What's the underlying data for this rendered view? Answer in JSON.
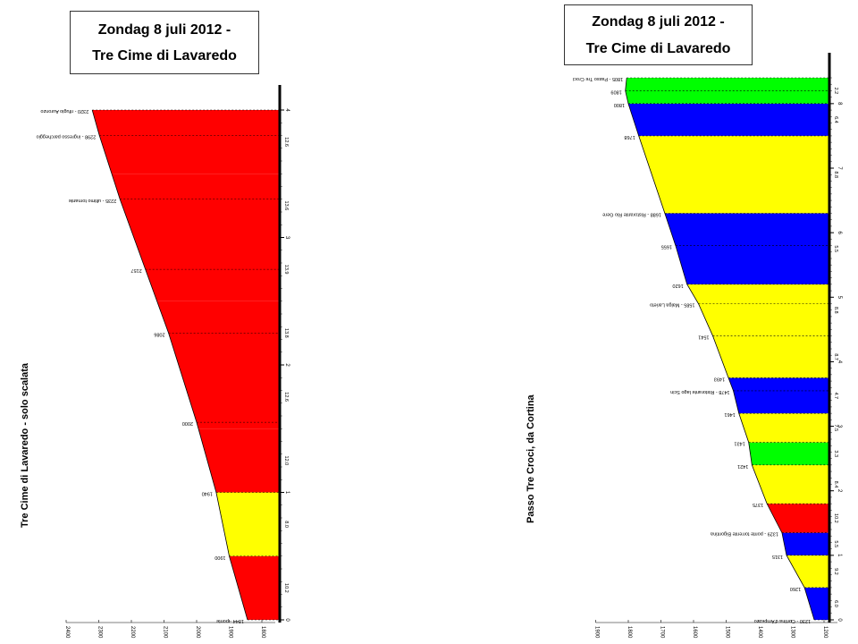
{
  "colors": {
    "red": "#ff0000",
    "yellow": "#ffff00",
    "blue": "#0000ff",
    "green": "#00ff00",
    "axis": "#000000"
  },
  "left_chart": {
    "title_line1": "Zondag 8 juli 2012 -",
    "title_line2": "Tre Cime di Lavaredo",
    "ylabel": "Tre Cime di Lavaredo - solo scalata"
  },
  "right_chart": {
    "title_line1": "Zondag 8 juli 2012 -",
    "title_line2": "Tre Cime di Lavaredo",
    "ylabel": "Passo Tre Croci, da Cortina"
  },
  "chart_data": [
    {
      "type": "area",
      "orientation": "rotated-90",
      "title": "Zondag 8 juli 2012 - Tre Cime di Lavaredo",
      "ylabel": "Tre Cime di Lavaredo - solo scalata",
      "xlim": [
        0,
        4
      ],
      "ylim": [
        1800,
        2400
      ],
      "distance_ticks": [
        "0",
        "1",
        "2",
        "3",
        "4"
      ],
      "elevation_ticks": [
        "2400",
        "2300",
        "2200",
        "2100",
        "2000",
        "1900",
        "1800"
      ],
      "segments": [
        {
          "from": 0,
          "to": 0.5,
          "color": "red",
          "gradient": "10.2"
        },
        {
          "from": 0.5,
          "to": 1,
          "color": "yellow",
          "gradient": "8.0"
        },
        {
          "from": 1,
          "to": 1.5,
          "color": "red",
          "gradient": "12.0"
        },
        {
          "from": 1.5,
          "to": 2,
          "color": "red",
          "gradient": "12.6"
        },
        {
          "from": 2,
          "to": 2.5,
          "color": "red",
          "gradient": "13.8"
        },
        {
          "from": 2.5,
          "to": 3,
          "color": "red",
          "gradient": "13.9"
        },
        {
          "from": 3,
          "to": 3.5,
          "color": "red",
          "gradient": "13.6"
        },
        {
          "from": 3.5,
          "to": 4,
          "color": "red",
          "gradient": "12.6"
        }
      ],
      "points": [
        {
          "x": 0,
          "y": 1844,
          "label": "1844 - ponte"
        },
        {
          "x": 0.5,
          "y": 1900,
          "label": "1900"
        },
        {
          "x": 1,
          "y": 1940,
          "label": "1940"
        },
        {
          "x": 1.55,
          "y": 2000,
          "label": "2000"
        },
        {
          "x": 2.25,
          "y": 2086,
          "label": "2086"
        },
        {
          "x": 2.75,
          "y": 2157,
          "label": "2157"
        },
        {
          "x": 3.3,
          "y": 2235,
          "label": "2235 - ultimo tornante"
        },
        {
          "x": 3.8,
          "y": 2298,
          "label": "2298 - ingresso parcheggio"
        },
        {
          "x": 4,
          "y": 2320,
          "label": "2320 - rifugio Auronzo"
        }
      ]
    },
    {
      "type": "area",
      "orientation": "rotated-90",
      "title": "Zondag 8 juli 2012 - Tre Cime di Lavaredo",
      "ylabel": "Passo Tre Croci, da Cortina",
      "xlim": [
        0,
        8.4
      ],
      "ylim": [
        1200,
        1900
      ],
      "distance_ticks": [
        "0",
        "1",
        "2",
        "3",
        "4",
        "5",
        "6",
        "7",
        "8"
      ],
      "elevation_ticks": [
        "1900",
        "1800",
        "1700",
        "1600",
        "1500",
        "1400",
        "1300",
        "1200"
      ],
      "segments": [
        {
          "from": 0,
          "to": 0.5,
          "color": "blue",
          "gradient": "6.0"
        },
        {
          "from": 0.5,
          "to": 1,
          "color": "yellow",
          "gradient": "9.2"
        },
        {
          "from": 1,
          "to": 1.35,
          "color": "blue",
          "gradient": "5.5"
        },
        {
          "from": 1.35,
          "to": 1.8,
          "color": "red",
          "gradient": "10.2"
        },
        {
          "from": 1.8,
          "to": 2.4,
          "color": "yellow",
          "gradient": "8.4"
        },
        {
          "from": 2.4,
          "to": 2.75,
          "color": "green",
          "gradient": "3.3"
        },
        {
          "from": 2.75,
          "to": 3.2,
          "color": "yellow",
          "gradient": "7.5"
        },
        {
          "from": 3.2,
          "to": 3.75,
          "color": "blue",
          "gradient": "4.7"
        },
        {
          "from": 3.75,
          "to": 4.4,
          "color": "yellow",
          "gradient": "8.7"
        },
        {
          "from": 4.4,
          "to": 5.2,
          "color": "yellow",
          "gradient": "8.8"
        },
        {
          "from": 5.2,
          "to": 6.3,
          "color": "blue",
          "gradient": "5.5"
        },
        {
          "from": 6.3,
          "to": 7.5,
          "color": "yellow",
          "gradient": "8.8"
        },
        {
          "from": 7.5,
          "to": 8.0,
          "color": "blue",
          "gradient": "6.4"
        },
        {
          "from": 8.0,
          "to": 8.4,
          "color": "green",
          "gradient": "2.2"
        }
      ],
      "points": [
        {
          "x": 0,
          "y": 1230,
          "label": "1230 - Cortina d'Ampezzo"
        },
        {
          "x": 0.5,
          "y": 1260,
          "label": "1260"
        },
        {
          "x": 1,
          "y": 1315,
          "label": "1315"
        },
        {
          "x": 1.35,
          "y": 1329,
          "label": "1329 - ponte torrente Bigontina"
        },
        {
          "x": 1.8,
          "y": 1375,
          "label": "1375"
        },
        {
          "x": 2.4,
          "y": 1421,
          "label": "1421"
        },
        {
          "x": 2.75,
          "y": 1431,
          "label": "1431"
        },
        {
          "x": 3.2,
          "y": 1461,
          "label": "1461"
        },
        {
          "x": 3.55,
          "y": 1478,
          "label": "1478 - Ristorante lago Scin"
        },
        {
          "x": 3.75,
          "y": 1493,
          "label": "1493"
        },
        {
          "x": 4.4,
          "y": 1541,
          "label": "1541"
        },
        {
          "x": 4.9,
          "y": 1585,
          "label": "1585 - Malga Larieto"
        },
        {
          "x": 5.2,
          "y": 1620,
          "label": "1620"
        },
        {
          "x": 5.8,
          "y": 1655,
          "label": "1655"
        },
        {
          "x": 6.3,
          "y": 1688,
          "label": "1688 - Ristorante Rio Gere"
        },
        {
          "x": 7.5,
          "y": 1768,
          "label": "1768"
        },
        {
          "x": 8.0,
          "y": 1800,
          "label": "1800"
        },
        {
          "x": 8.2,
          "y": 1809,
          "label": "1809"
        },
        {
          "x": 8.4,
          "y": 1805,
          "label": "1805 - Passo Tre Croci"
        }
      ]
    }
  ]
}
